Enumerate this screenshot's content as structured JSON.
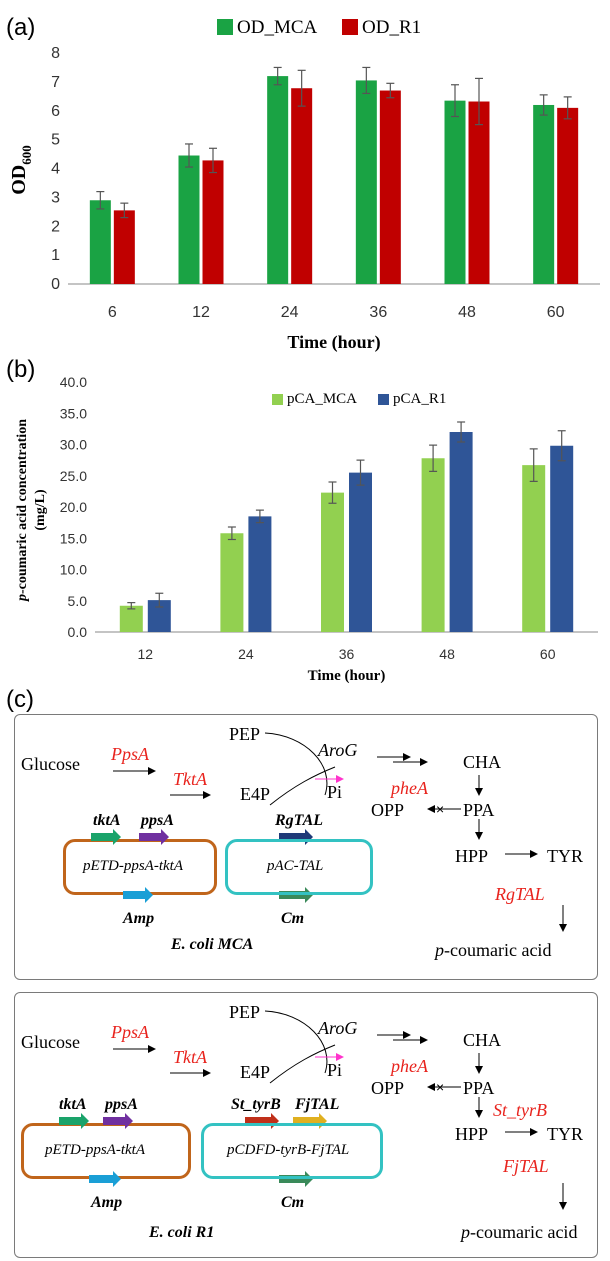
{
  "panels": {
    "a": "(a)",
    "b": "(b)",
    "c": "(c)"
  },
  "chart_data": [
    {
      "type": "bar",
      "xlabel": "Time (hour)",
      "ylabel_main": "OD",
      "ylabel_sub": "600",
      "categories": [
        "6",
        "12",
        "24",
        "36",
        "48",
        "60"
      ],
      "ylim": [
        0,
        8
      ],
      "yticks": [
        "0",
        "1",
        "2",
        "3",
        "4",
        "5",
        "6",
        "7",
        "8"
      ],
      "legend_position": "top",
      "series": [
        {
          "name": "OD_MCA",
          "color": "#1aa344",
          "values": [
            2.9,
            4.45,
            7.2,
            7.05,
            6.35,
            6.2
          ],
          "errors": [
            0.3,
            0.4,
            0.3,
            0.45,
            0.55,
            0.35
          ]
        },
        {
          "name": "OD_R1",
          "color": "#c00000",
          "values": [
            2.55,
            4.28,
            6.78,
            6.7,
            6.32,
            6.1
          ],
          "errors": [
            0.25,
            0.42,
            0.62,
            0.25,
            0.8,
            0.38
          ]
        }
      ]
    },
    {
      "type": "bar",
      "xlabel": "Time (hour)",
      "ylabel_line1_italic": "p",
      "ylabel_line1": "-coumaric  acid concentration",
      "ylabel_line2": "(mg/L)",
      "categories": [
        "12",
        "24",
        "36",
        "48",
        "60"
      ],
      "ylim": [
        0,
        40
      ],
      "yticks": [
        "0.0",
        "5.0",
        "10.0",
        "15.0",
        "20.0",
        "25.0",
        "30.0",
        "35.0",
        "40.0"
      ],
      "legend_position": "top",
      "series": [
        {
          "name": "pCA_MCA",
          "color": "#92d050",
          "values": [
            4.2,
            15.8,
            22.3,
            27.8,
            26.7
          ],
          "errors": [
            0.5,
            1.0,
            1.7,
            2.1,
            2.6
          ]
        },
        {
          "name": "pCA_R1",
          "color": "#2f5597",
          "values": [
            5.1,
            18.5,
            25.5,
            32.0,
            29.8
          ],
          "errors": [
            1.1,
            1.0,
            2.0,
            1.6,
            2.4
          ]
        }
      ]
    }
  ],
  "diagram_mca": {
    "glucose": "Glucose",
    "ppsa": "PpsA",
    "tkta": "TktA",
    "pep": "PEP",
    "e4p": "E4P",
    "arog": "AroG",
    "pi": "Pi",
    "cha": "CHA",
    "phea": "pheA",
    "opp": "OPP",
    "ppa": "PPA",
    "hpp": "HPP",
    "tyr": "TYR",
    "tal_enzyme": "RgTAL",
    "product_italic": "p",
    "product": "-coumaric acid",
    "gene_tkta": "tktA",
    "gene_ppsa": "ppsA",
    "plasmid1": "pETD-ppsA-tktA",
    "amp": "Amp",
    "gene_tal": "RgTAL",
    "plasmid2": "pAC-TAL",
    "cm": "Cm",
    "strain": "E. coli MCA"
  },
  "diagram_r1": {
    "glucose": "Glucose",
    "ppsa": "PpsA",
    "tkta": "TktA",
    "pep": "PEP",
    "e4p": "E4P",
    "arog": "AroG",
    "pi": "Pi",
    "cha": "CHA",
    "phea": "pheA",
    "opp": "OPP",
    "ppa": "PPA",
    "st_tyrb": "St_tyrB",
    "hpp": "HPP",
    "tyr": "TYR",
    "tal_enzyme": "FjTAL",
    "product_italic": "p",
    "product": "-coumaric acid",
    "gene_tkta": "tktA",
    "gene_ppsa": "ppsA",
    "plasmid1": "pETD-ppsA-tktA",
    "amp": "Amp",
    "gene_st_tyrb": "St_tyrB",
    "gene_fjtal": "FjTAL",
    "plasmid2": "pCDFD-tyrB-FjTAL",
    "cm": "Cm",
    "strain": "E. coli R1"
  },
  "colors": {
    "orange_plasmid": "#c0651b",
    "teal_plasmid": "#33c2c2",
    "green_gene": "#1aa36a",
    "purple_gene": "#7030a0",
    "blue_gene": "#1a9fd6",
    "navy_gene": "#1f3a78",
    "cm_gene": "#3a8a5a",
    "red_gene": "#c0301a",
    "yellow_gene": "#e0b020",
    "enzyme_red": "#e8231d",
    "arog_arrow": "#ff33cc"
  }
}
